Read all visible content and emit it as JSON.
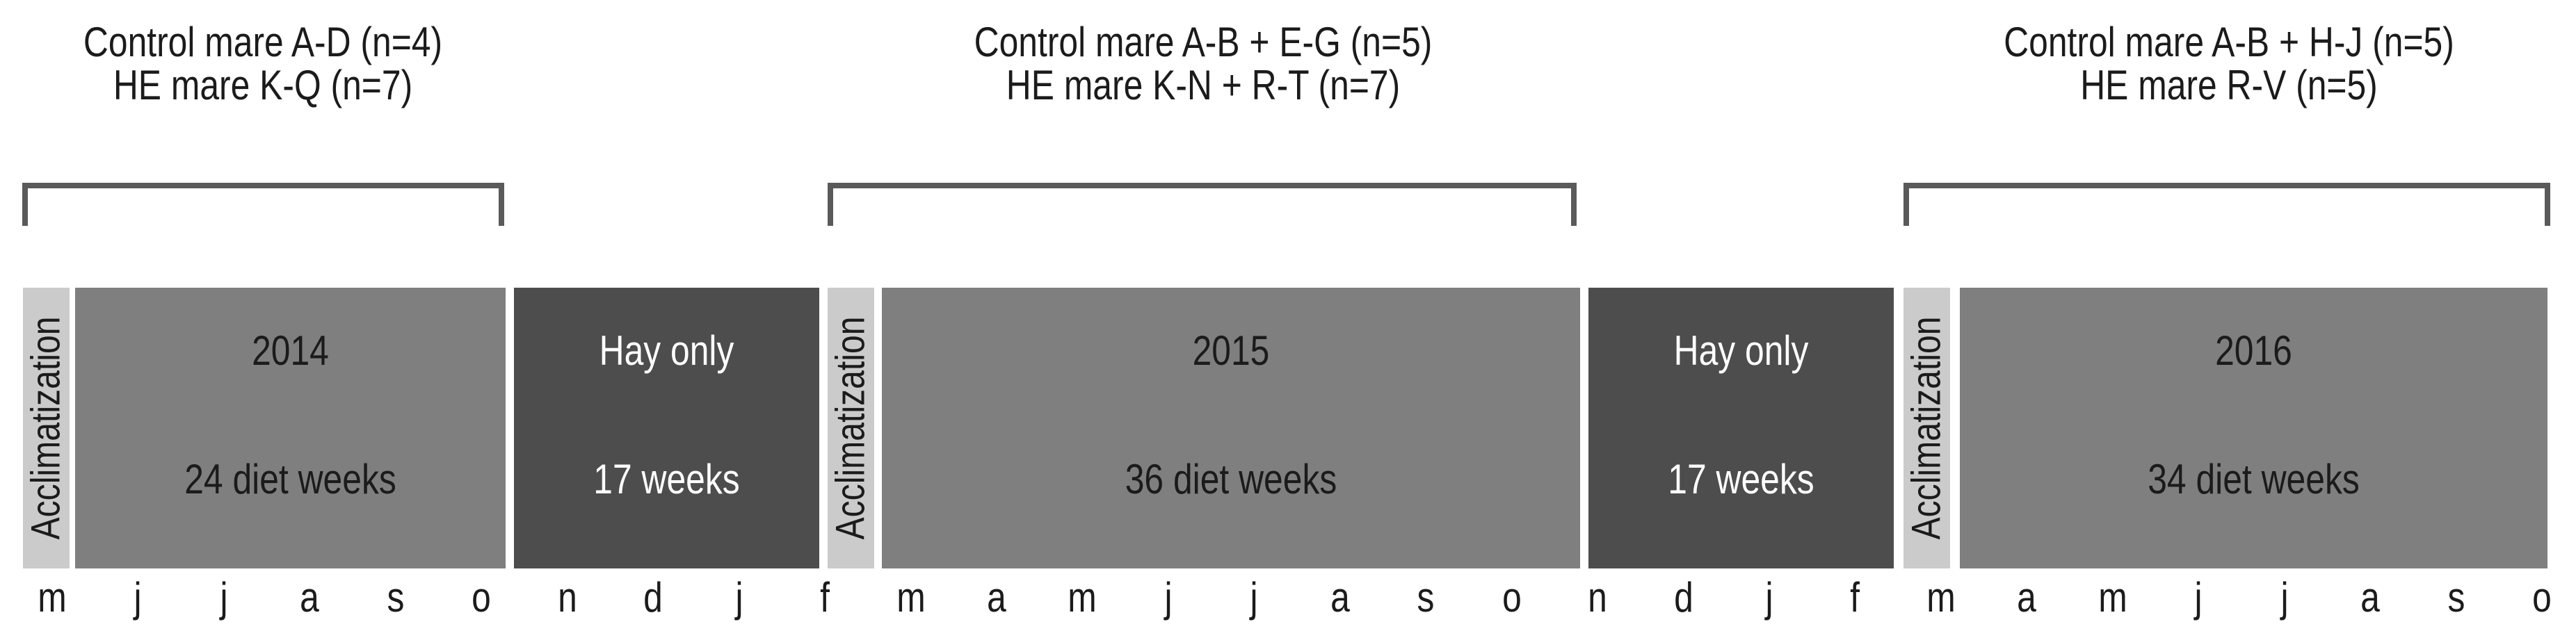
{
  "group_labels": [
    {
      "line1": "Control mare A-D (n=4)",
      "line2": "HE mare K-Q (n=7)"
    },
    {
      "line1": "Control mare A-B + E-G (n=5)",
      "line2": "HE mare K-N + R-T (n=7)"
    },
    {
      "line1": "Control mare A-B + H-J (n=5)",
      "line2": "HE mare R-V (n=5)"
    }
  ],
  "acclimatization_label": "Acclimatization",
  "diet_periods": [
    {
      "year": "2014",
      "duration": "24 diet weeks"
    },
    {
      "year": "2015",
      "duration": "36 diet weeks"
    },
    {
      "year": "2016",
      "duration": "34 diet weeks"
    }
  ],
  "hay_periods": [
    {
      "title": "Hay only",
      "duration": "17 weeks"
    },
    {
      "title": "Hay only",
      "duration": "17 weeks"
    }
  ],
  "month_axis": [
    "m",
    "j",
    "j",
    "a",
    "s",
    "o",
    "n",
    "d",
    "j",
    "f",
    "m",
    "a",
    "m",
    "j",
    "j",
    "a",
    "s",
    "o",
    "n",
    "d",
    "j",
    "f",
    "m",
    "a",
    "m",
    "j",
    "j",
    "a",
    "s",
    "o"
  ],
  "colors": {
    "background": "#ffffff",
    "diet_box": "#7f7f7f",
    "hay_box": "#4d4d4d",
    "acclimatization_box": "#cbcbcb",
    "bracket": "#5a5a5a",
    "text_dark": "#1b1b1b",
    "text_light": "#ffffff"
  }
}
